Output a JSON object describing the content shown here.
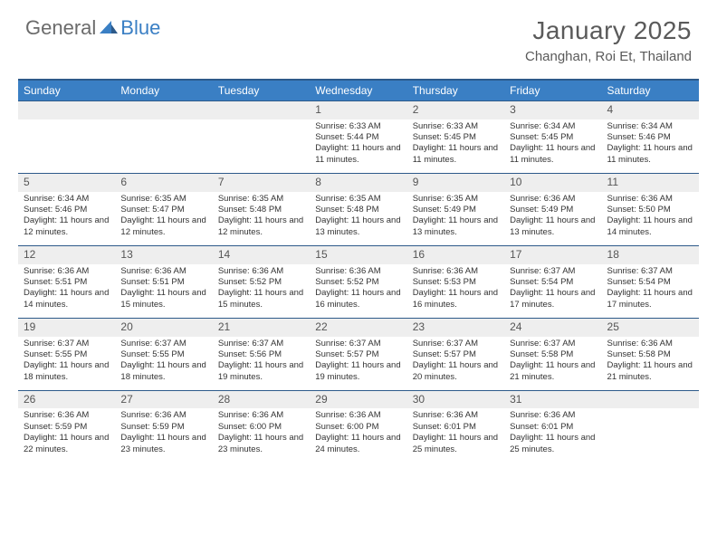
{
  "brand": {
    "part1": "General",
    "part2": "Blue"
  },
  "title": "January 2025",
  "location": "Changhan, Roi Et, Thailand",
  "colors": {
    "header_bg": "#3a7fc4",
    "header_border": "#2d5a8a",
    "daynum_bg": "#eeeeee",
    "text": "#333333",
    "brand_gray": "#6b6b6b",
    "brand_blue": "#3a7fc4"
  },
  "weekdays": [
    "Sunday",
    "Monday",
    "Tuesday",
    "Wednesday",
    "Thursday",
    "Friday",
    "Saturday"
  ],
  "weeks": [
    [
      null,
      null,
      null,
      {
        "n": "1",
        "sr": "6:33 AM",
        "ss": "5:44 PM",
        "dl": "11 hours and 11 minutes."
      },
      {
        "n": "2",
        "sr": "6:33 AM",
        "ss": "5:45 PM",
        "dl": "11 hours and 11 minutes."
      },
      {
        "n": "3",
        "sr": "6:34 AM",
        "ss": "5:45 PM",
        "dl": "11 hours and 11 minutes."
      },
      {
        "n": "4",
        "sr": "6:34 AM",
        "ss": "5:46 PM",
        "dl": "11 hours and 11 minutes."
      }
    ],
    [
      {
        "n": "5",
        "sr": "6:34 AM",
        "ss": "5:46 PM",
        "dl": "11 hours and 12 minutes."
      },
      {
        "n": "6",
        "sr": "6:35 AM",
        "ss": "5:47 PM",
        "dl": "11 hours and 12 minutes."
      },
      {
        "n": "7",
        "sr": "6:35 AM",
        "ss": "5:48 PM",
        "dl": "11 hours and 12 minutes."
      },
      {
        "n": "8",
        "sr": "6:35 AM",
        "ss": "5:48 PM",
        "dl": "11 hours and 13 minutes."
      },
      {
        "n": "9",
        "sr": "6:35 AM",
        "ss": "5:49 PM",
        "dl": "11 hours and 13 minutes."
      },
      {
        "n": "10",
        "sr": "6:36 AM",
        "ss": "5:49 PM",
        "dl": "11 hours and 13 minutes."
      },
      {
        "n": "11",
        "sr": "6:36 AM",
        "ss": "5:50 PM",
        "dl": "11 hours and 14 minutes."
      }
    ],
    [
      {
        "n": "12",
        "sr": "6:36 AM",
        "ss": "5:51 PM",
        "dl": "11 hours and 14 minutes."
      },
      {
        "n": "13",
        "sr": "6:36 AM",
        "ss": "5:51 PM",
        "dl": "11 hours and 15 minutes."
      },
      {
        "n": "14",
        "sr": "6:36 AM",
        "ss": "5:52 PM",
        "dl": "11 hours and 15 minutes."
      },
      {
        "n": "15",
        "sr": "6:36 AM",
        "ss": "5:52 PM",
        "dl": "11 hours and 16 minutes."
      },
      {
        "n": "16",
        "sr": "6:36 AM",
        "ss": "5:53 PM",
        "dl": "11 hours and 16 minutes."
      },
      {
        "n": "17",
        "sr": "6:37 AM",
        "ss": "5:54 PM",
        "dl": "11 hours and 17 minutes."
      },
      {
        "n": "18",
        "sr": "6:37 AM",
        "ss": "5:54 PM",
        "dl": "11 hours and 17 minutes."
      }
    ],
    [
      {
        "n": "19",
        "sr": "6:37 AM",
        "ss": "5:55 PM",
        "dl": "11 hours and 18 minutes."
      },
      {
        "n": "20",
        "sr": "6:37 AM",
        "ss": "5:55 PM",
        "dl": "11 hours and 18 minutes."
      },
      {
        "n": "21",
        "sr": "6:37 AM",
        "ss": "5:56 PM",
        "dl": "11 hours and 19 minutes."
      },
      {
        "n": "22",
        "sr": "6:37 AM",
        "ss": "5:57 PM",
        "dl": "11 hours and 19 minutes."
      },
      {
        "n": "23",
        "sr": "6:37 AM",
        "ss": "5:57 PM",
        "dl": "11 hours and 20 minutes."
      },
      {
        "n": "24",
        "sr": "6:37 AM",
        "ss": "5:58 PM",
        "dl": "11 hours and 21 minutes."
      },
      {
        "n": "25",
        "sr": "6:36 AM",
        "ss": "5:58 PM",
        "dl": "11 hours and 21 minutes."
      }
    ],
    [
      {
        "n": "26",
        "sr": "6:36 AM",
        "ss": "5:59 PM",
        "dl": "11 hours and 22 minutes."
      },
      {
        "n": "27",
        "sr": "6:36 AM",
        "ss": "5:59 PM",
        "dl": "11 hours and 23 minutes."
      },
      {
        "n": "28",
        "sr": "6:36 AM",
        "ss": "6:00 PM",
        "dl": "11 hours and 23 minutes."
      },
      {
        "n": "29",
        "sr": "6:36 AM",
        "ss": "6:00 PM",
        "dl": "11 hours and 24 minutes."
      },
      {
        "n": "30",
        "sr": "6:36 AM",
        "ss": "6:01 PM",
        "dl": "11 hours and 25 minutes."
      },
      {
        "n": "31",
        "sr": "6:36 AM",
        "ss": "6:01 PM",
        "dl": "11 hours and 25 minutes."
      },
      null
    ]
  ],
  "labels": {
    "sunrise": "Sunrise:",
    "sunset": "Sunset:",
    "daylight": "Daylight:"
  }
}
